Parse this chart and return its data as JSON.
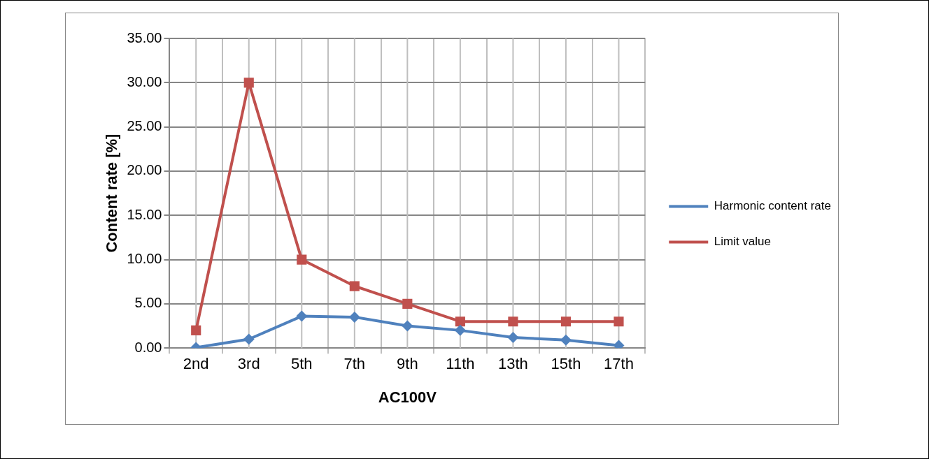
{
  "chart_data": {
    "type": "line",
    "xlabel": "AC100V",
    "ylabel": "Content rate [%]",
    "categories": [
      "2nd",
      "3rd",
      "5th",
      "7th",
      "9th",
      "11th",
      "13th",
      "15th",
      "17th"
    ],
    "series": [
      {
        "name": "Harmonic content rate",
        "color": "#4f81bd",
        "marker": "diamond",
        "values": [
          0.05,
          1.0,
          3.6,
          3.5,
          2.5,
          2.0,
          1.2,
          0.9,
          0.3
        ]
      },
      {
        "name": "Limit value",
        "color": "#c0504d",
        "marker": "square",
        "values": [
          2,
          30,
          10,
          7,
          5,
          3,
          3,
          3,
          3
        ]
      }
    ],
    "ylim": [
      0,
      35
    ],
    "yticks": [
      {
        "value": 0,
        "label": "0.00"
      },
      {
        "value": 5,
        "label": "5.00"
      },
      {
        "value": 10,
        "label": "10.00"
      },
      {
        "value": 15,
        "label": "15.00"
      },
      {
        "value": 20,
        "label": "20.00"
      },
      {
        "value": 25,
        "label": "25.00"
      },
      {
        "value": 30,
        "label": "30.00"
      },
      {
        "value": 35,
        "label": "35.00"
      }
    ],
    "grid": true,
    "legend": "right"
  }
}
